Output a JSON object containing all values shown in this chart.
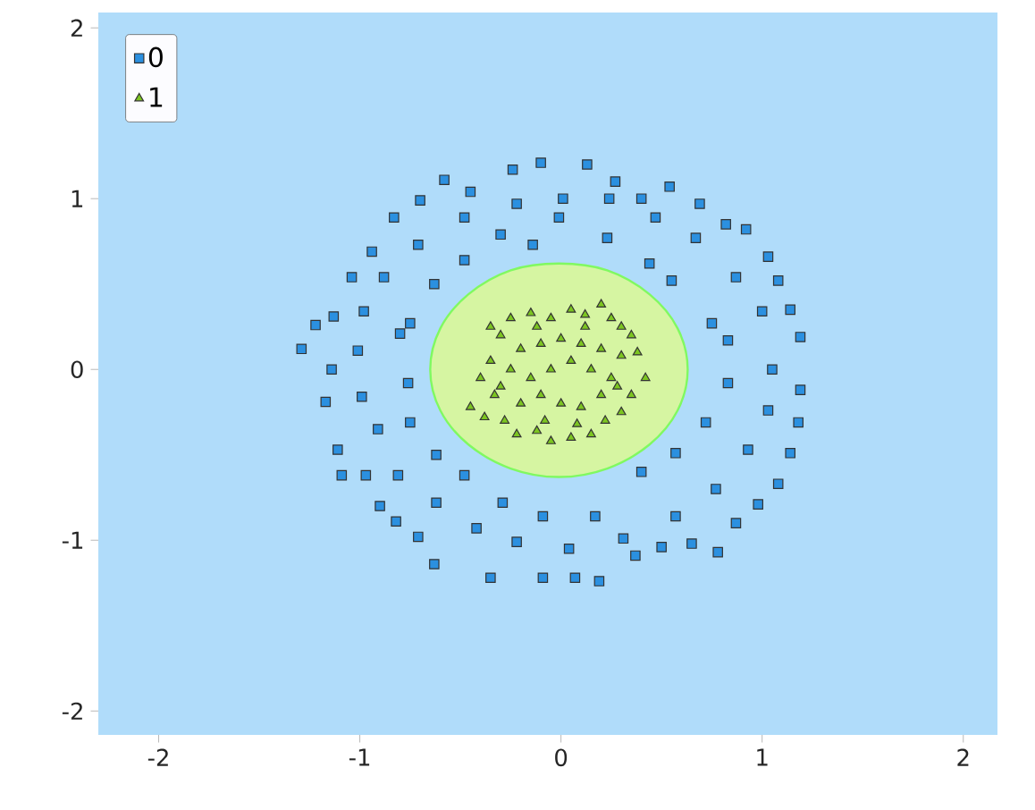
{
  "chart_data": {
    "type": "scatter",
    "xlim": [
      -2.3,
      2.17
    ],
    "ylim": [
      -2.14,
      2.09
    ],
    "xticks": [
      -2,
      -1,
      0,
      1,
      2
    ],
    "yticks": [
      -2,
      -1,
      0,
      1,
      2
    ],
    "legend": "top left",
    "bands": [
      {
        "axis": "x",
        "from": -2.3,
        "to": 2.17,
        "color": "#b0dcfa"
      }
    ],
    "series": [
      {
        "type": "area",
        "color": "#d6f5a2",
        "x": [
          0.63,
          0.58,
          0.44,
          0.23,
          -0.01,
          -0.25,
          -0.46,
          -0.6,
          -0.65,
          -0.6,
          -0.46,
          -0.25,
          -0.01,
          0.23,
          0.44,
          0.58
        ],
        "values": [
          0,
          0.24,
          0.44,
          0.58,
          0.62,
          0.58,
          0.44,
          0.24,
          0,
          -0.24,
          -0.44,
          -0.58,
          -0.63,
          -0.58,
          -0.44,
          -0.24
        ]
      },
      {
        "name": "0",
        "marker": "square",
        "color": "#2b90e0",
        "x": [
          -1.29,
          -1.22,
          -1.17,
          -1.11,
          -1.09,
          -1.14,
          -1.13,
          -1.04,
          -0.94,
          -0.83,
          -0.7,
          -0.58,
          -0.45,
          -0.24,
          -0.1,
          0.13,
          0.27,
          0.4,
          0.54,
          0.69,
          0.82,
          0.92,
          1.03,
          1.08,
          1.14,
          1.19,
          1.19,
          1.14,
          1.08,
          0.98,
          0.87,
          0.78,
          0.65,
          0.5,
          0.37,
          0.19,
          0.07,
          -0.09,
          -0.35,
          -0.63,
          -0.71,
          -0.82,
          -0.9,
          -0.97,
          -0.8,
          -0.76,
          -0.75,
          -0.62,
          -0.48,
          -0.29,
          -0.09,
          0.17,
          0.4,
          0.57,
          0.72,
          0.83,
          0.83,
          0.75,
          0.55,
          0.44,
          0.23,
          -0.01,
          -0.14,
          -0.3,
          -0.48,
          -0.63,
          -0.75,
          -0.98,
          -0.99,
          -0.91,
          -0.81,
          -0.62,
          -0.42,
          -0.22,
          0.04,
          0.31,
          0.57,
          0.77,
          0.93,
          1.03,
          1.05,
          1.0,
          0.87,
          0.67,
          0.47,
          0.24,
          0.01,
          -0.22,
          -0.48,
          -0.71,
          -0.88,
          -1.01,
          1.18
        ],
        "values": [
          0.12,
          0.26,
          -0.19,
          -0.47,
          -0.62,
          0.0,
          0.31,
          0.54,
          0.69,
          0.89,
          0.99,
          1.11,
          1.04,
          1.17,
          1.21,
          1.2,
          1.1,
          1.0,
          1.07,
          0.97,
          0.85,
          0.82,
          0.66,
          0.52,
          0.35,
          0.19,
          -0.12,
          -0.49,
          -0.67,
          -0.79,
          -0.9,
          -1.07,
          -1.02,
          -1.04,
          -1.09,
          -1.24,
          -1.22,
          -1.22,
          -1.22,
          -1.14,
          -0.98,
          -0.89,
          -0.8,
          -0.62,
          0.21,
          -0.08,
          -0.31,
          -0.5,
          -0.62,
          -0.78,
          -0.86,
          -0.86,
          -0.6,
          -0.49,
          -0.31,
          -0.08,
          0.17,
          0.27,
          0.52,
          0.62,
          0.77,
          0.89,
          0.73,
          0.79,
          0.64,
          0.5,
          0.27,
          0.34,
          -0.16,
          -0.35,
          -0.62,
          -0.78,
          -0.93,
          -1.01,
          -1.05,
          -0.99,
          -0.86,
          -0.7,
          -0.47,
          -0.24,
          0.0,
          0.34,
          0.54,
          0.77,
          0.89,
          1.0,
          1.0,
          0.97,
          0.89,
          0.73,
          0.54,
          0.11,
          -0.31
        ]
      },
      {
        "name": "1",
        "marker": "triangle",
        "color": "#7cc520",
        "x": [
          -0.45,
          -0.38,
          -0.33,
          -0.4,
          -0.35,
          -0.3,
          -0.35,
          -0.25,
          -0.15,
          -0.05,
          0.05,
          0.12,
          0.2,
          0.25,
          0.3,
          0.35,
          0.38,
          0.42,
          0.35,
          0.3,
          0.22,
          0.15,
          0.05,
          -0.05,
          -0.12,
          -0.22,
          -0.28,
          -0.2,
          -0.1,
          0.0,
          0.1,
          0.2,
          0.25,
          0.15,
          0.05,
          -0.05,
          -0.15,
          -0.25,
          -0.2,
          -0.1,
          0.0,
          0.1,
          0.2,
          0.3,
          0.28,
          -0.08,
          0.08,
          -0.3,
          0.12,
          -0.12
        ],
        "values": [
          -0.22,
          -0.28,
          -0.15,
          -0.05,
          0.05,
          0.2,
          0.25,
          0.3,
          0.33,
          0.3,
          0.35,
          0.32,
          0.38,
          0.3,
          0.25,
          0.2,
          0.1,
          -0.05,
          -0.15,
          -0.25,
          -0.3,
          -0.38,
          -0.4,
          -0.42,
          -0.36,
          -0.38,
          -0.3,
          -0.2,
          -0.15,
          -0.2,
          -0.22,
          -0.15,
          -0.05,
          0.0,
          0.05,
          0.0,
          -0.05,
          0.0,
          0.12,
          0.15,
          0.18,
          0.15,
          0.12,
          0.08,
          -0.1,
          -0.3,
          -0.32,
          -0.1,
          0.25,
          0.25
        ]
      }
    ]
  }
}
